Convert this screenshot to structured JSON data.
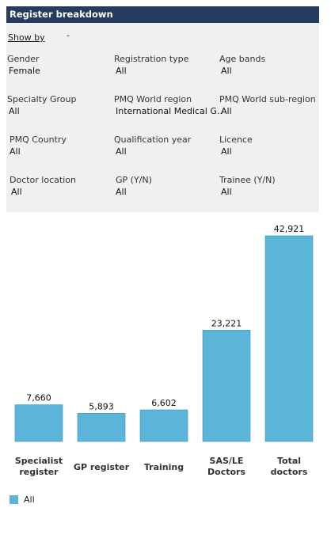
{
  "header": {
    "title": "Register breakdown"
  },
  "show_by": {
    "label": "Show by",
    "value": "-"
  },
  "filters": [
    {
      "label": "Gender",
      "value": "Female"
    },
    {
      "label": "Registration type",
      "value": "All"
    },
    {
      "label": "Age bands",
      "value": "All"
    },
    {
      "label": "Specialty Group",
      "value": "All"
    },
    {
      "label": "PMQ World region",
      "value": "International Medical G.."
    },
    {
      "label": "PMQ World sub-region",
      "value": "All"
    },
    {
      "label": "PMQ Country",
      "value": "All"
    },
    {
      "label": "Qualification year",
      "value": "All"
    },
    {
      "label": "Licence",
      "value": "All"
    },
    {
      "label": "Doctor location",
      "value": "All"
    },
    {
      "label": "GP (Y/N)",
      "value": "All"
    },
    {
      "label": "Trainee (Y/N)",
      "value": "All"
    }
  ],
  "chart_data": {
    "type": "bar",
    "categories": [
      [
        "Specialist",
        "register"
      ],
      [
        "GP register"
      ],
      [
        "Training"
      ],
      [
        "SAS/LE",
        "Doctors"
      ],
      [
        "Total",
        "doctors"
      ]
    ],
    "values": [
      7660,
      5893,
      6602,
      23221,
      42921
    ],
    "value_labels": [
      "7,660",
      "5,893",
      "6,602",
      "23,221",
      "42,921"
    ],
    "series": [
      {
        "name": "All",
        "color": "#5bb5d8"
      }
    ],
    "legend": "bottom-left",
    "ylim": [
      0,
      42921
    ],
    "grid": false
  },
  "legend": {
    "label": "All"
  }
}
